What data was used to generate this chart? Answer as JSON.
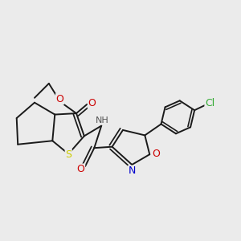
{
  "background_color": "#ebebeb",
  "figsize": [
    3.0,
    3.0
  ],
  "dpi": 100,
  "bond_color": "#1a1a1a",
  "bond_lw": 1.4,
  "atom_labels": {
    "S": {
      "color": "#cccc00"
    },
    "O": {
      "color": "#cc0000"
    },
    "N": {
      "color": "#0000cc"
    },
    "NH": {
      "color": "#555555"
    },
    "Cl": {
      "color": "#33aa33"
    }
  }
}
